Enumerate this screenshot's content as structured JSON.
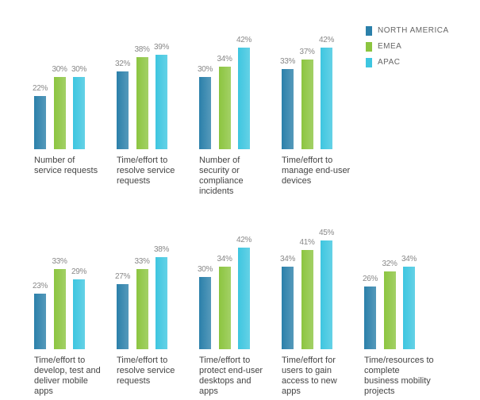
{
  "chart_data": {
    "type": "bar",
    "categories": [
      "Number of service requests",
      "Time/effort to resolve service requests",
      "Number of security or compliance incidents",
      "Time/effort to manage end-user devices",
      "Time/effort to develop, test and deliver mobile apps",
      "Time/effort to resolve service requests",
      "Time/effort to protect end-user desktops and apps",
      "Time/effort for users to gain access to new apps",
      "Time/resources to complete business mobility projects"
    ],
    "series": [
      {
        "name": "NORTH AMERICA",
        "color": "#2b80aa",
        "values": [
          22,
          32,
          30,
          33,
          23,
          27,
          30,
          34,
          26
        ],
        "value_labels": [
          "22%",
          "32%",
          "30%",
          "33%",
          "23%",
          "27%",
          "30%",
          "34%",
          "26%"
        ]
      },
      {
        "name": "EMEA",
        "color": "#8cc540",
        "values": [
          30,
          38,
          34,
          37,
          33,
          33,
          34,
          41,
          32
        ],
        "value_labels": [
          "30%",
          "38%",
          "34%",
          "37%",
          "33%",
          "33%",
          "34%",
          "41%",
          "32%"
        ]
      },
      {
        "name": "APAC",
        "color": "#3ec6e0",
        "values": [
          30,
          39,
          42,
          42,
          29,
          38,
          42,
          45,
          34
        ],
        "value_labels": [
          "30%",
          "39%",
          "42%",
          "42%",
          "29%",
          "38%",
          "42%",
          "45%",
          "34%"
        ]
      }
    ],
    "legend": "top-right"
  }
}
